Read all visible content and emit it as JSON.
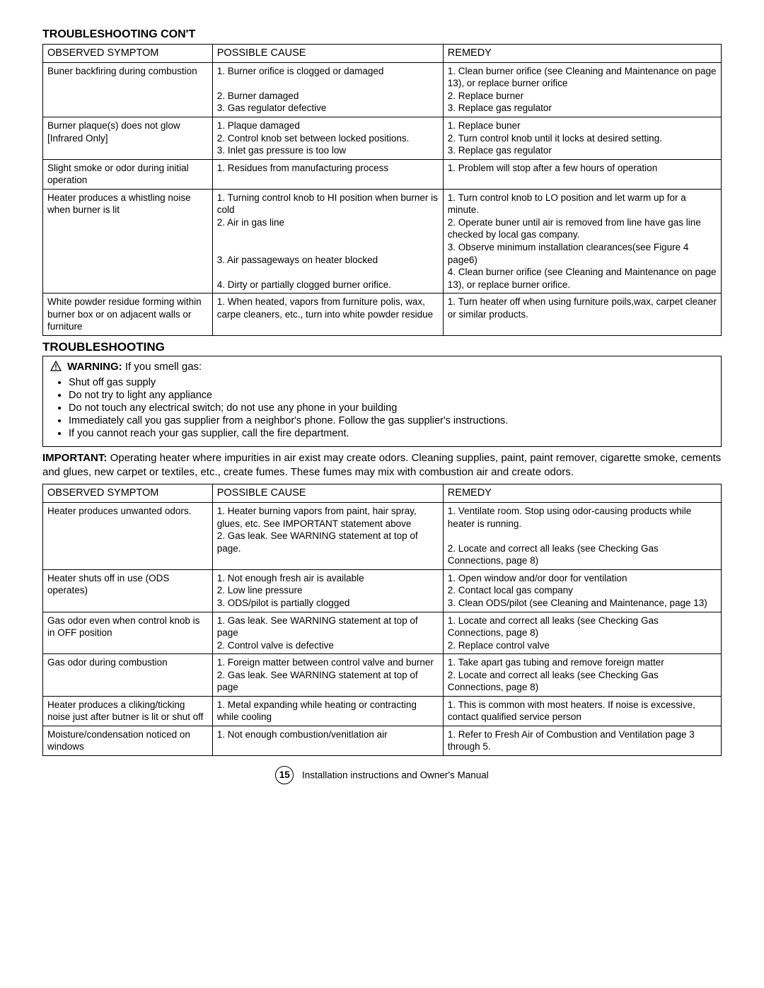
{
  "section1_title": "TROUBLESHOOTING CON'T",
  "table1_headers": {
    "symptom": "OBSERVED SYMPTOM",
    "cause": "POSSIBLE CAUSE",
    "remedy": "REMEDY"
  },
  "table1_rows": [
    {
      "symptom": "Buner backfiring during combustion",
      "cause": "1. Burner orifice is clogged or damaged\n\n2. Burner damaged\n3. Gas regulator defective",
      "remedy": "1. Clean burner orifice (see Cleaning and Maintenance on page 13), or replace burner orifice\n2. Replace burner\n3. Replace gas regulator"
    },
    {
      "symptom": "Burner plaque(s) does not glow [Infrared Only]",
      "cause": "1. Plaque damaged\n2. Control knob set between locked positions.\n3. Inlet gas pressure is too low",
      "remedy": "1. Replace buner\n2. Turn control knob until it locks at desired setting.\n3. Replace gas regulator"
    },
    {
      "symptom": "Slight smoke or odor during initial operation",
      "cause": "1. Residues from manufacturing process",
      "remedy": "1. Problem will stop after a few hours of operation"
    },
    {
      "symptom": "Heater produces a whistling noise when burner is lit",
      "cause": "1. Turning control knob to HI position when burner is cold\n2. Air in gas line\n\n\n3. Air passageways on heater blocked\n\n4. Dirty or partially clogged burner orifice.",
      "remedy": "1. Turn control knob to LO position and let warm up for a minute.\n2. Operate buner until air is removed from line have gas line checked by local gas company.\n3. Observe minimum installation clearances(see Figure 4 page6)\n4. Clean burner orifice (see Cleaning and Maintenance on page 13), or replace burner orifice."
    },
    {
      "symptom": "White powder residue forming within burner box or on adjacent walls or furniture",
      "cause": "1. When heated, vapors from furniture polis, wax, carpe cleaners, etc., turn into white powder residue",
      "remedy": "1. Turn heater off when using furniture poils,wax, carpet cleaner  or similar products."
    }
  ],
  "section2_title": "TROUBLESHOOTING",
  "warning": {
    "label": "WARNING:",
    "lead": "If you smell gas:",
    "items": [
      "Shut off gas supply",
      "Do not try to light any appliance",
      "Do not touch any electrical switch; do not use any phone in your building",
      "Immediately call you gas supplier from a neighbor's phone.  Follow the gas supplier's instructions.",
      "If you cannot reach your gas supplier, call the fire department."
    ]
  },
  "important": {
    "label": "IMPORTANT:",
    "text": "Operating heater where impurities in air exist may create odors.  Cleaning supplies, paint, paint remover, cigarette smoke, cements and glues, new carpet or textiles, etc., create fumes.  These fumes may mix with combustion air and create odors."
  },
  "table2_headers": {
    "symptom": "OBSERVED SYMPTOM",
    "cause": "POSSIBLE CAUSE",
    "remedy": "REMEDY"
  },
  "table2_rows": [
    {
      "symptom": "Heater produces unwanted odors.",
      "cause": "1. Heater burning vapors from paint, hair spray, glues, etc. See IMPORTANT statement above\n2. Gas leak. See WARNING statement at top of page.",
      "remedy": "1. Ventilate room. Stop using odor-causing products while heater is running.\n\n2. Locate and correct all leaks (see Checking Gas Connections, page 8)"
    },
    {
      "symptom": "Heater shuts off in use (ODS operates)",
      "cause": "1. Not enough fresh air is available\n2. Low line pressure\n3. ODS/pilot is partially clogged",
      "remedy": "1. Open window and/or door for ventilation\n2. Contact local gas company\n3. Clean ODS/pilot (see Cleaning and Maintenance, page 13)"
    },
    {
      "symptom": "Gas odor even when control knob is in OFF position",
      "cause": "1. Gas leak. See WARNING statement at top of page\n2. Control valve is defective",
      "remedy": "1. Locate and correct all leaks (see Checking Gas Connections, page 8)\n2. Replace control valve"
    },
    {
      "symptom": "Gas odor during combustion",
      "cause": "1. Foreign matter between control valve and burner\n2. Gas leak. See WARNING statement at top of page",
      "remedy": "1. Take apart gas tubing and remove foreign matter\n2.  Locate and correct all leaks (see Checking Gas Connections, page 8)"
    },
    {
      "symptom": "Heater produces a cliking/ticking noise just after butner is lit or shut off",
      "cause": "1. Metal expanding while heating or contracting while cooling",
      "remedy": "1. This is common with most heaters. If noise is excessive, contact  qualified service person"
    },
    {
      "symptom": "Moisture/condensation noticed on windows",
      "cause": "1. Not enough combustion/venitlation air",
      "remedy": "1. Refer to Fresh Air of Combustion and Ventilation page 3 through 5."
    }
  ],
  "footer": {
    "page_number": "15",
    "text": "Installation instructions and Owner's Manual"
  }
}
